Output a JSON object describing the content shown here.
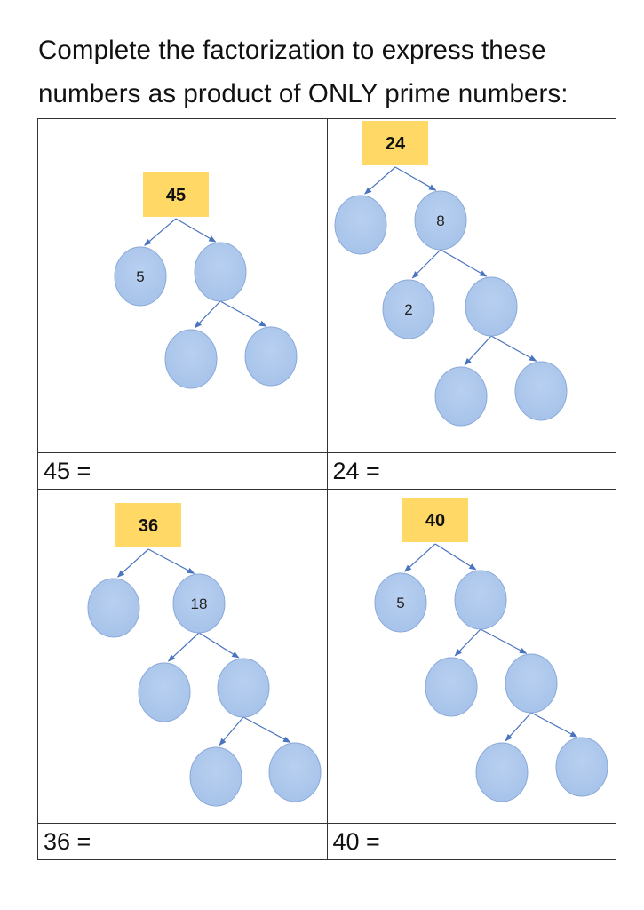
{
  "instruction": {
    "line1": "Complete the factorization to express these",
    "line2": "numbers as product of ONLY prime numbers:"
  },
  "colors": {
    "root_box": "#ffd866",
    "node_fill": "#a6c2e9",
    "node_stroke": "#8aa9d9",
    "arrow": "#4a74c0",
    "grid_border": "#333333"
  },
  "problems": [
    {
      "root": "45",
      "nodes": [
        {
          "id": "a",
          "parent": "root",
          "value": "5"
        },
        {
          "id": "b",
          "parent": "root",
          "value": ""
        },
        {
          "id": "c",
          "parent": "b",
          "value": ""
        },
        {
          "id": "d",
          "parent": "b",
          "value": ""
        }
      ],
      "answer_label": "45 ="
    },
    {
      "root": "24",
      "nodes": [
        {
          "id": "a",
          "parent": "root",
          "value": ""
        },
        {
          "id": "b",
          "parent": "root",
          "value": "8"
        },
        {
          "id": "c",
          "parent": "b",
          "value": "2"
        },
        {
          "id": "d",
          "parent": "b",
          "value": ""
        },
        {
          "id": "e",
          "parent": "d",
          "value": ""
        },
        {
          "id": "f",
          "parent": "d",
          "value": ""
        }
      ],
      "answer_label": "24 ="
    },
    {
      "root": "36",
      "nodes": [
        {
          "id": "a",
          "parent": "root",
          "value": ""
        },
        {
          "id": "b",
          "parent": "root",
          "value": "18"
        },
        {
          "id": "c",
          "parent": "b",
          "value": ""
        },
        {
          "id": "d",
          "parent": "b",
          "value": ""
        },
        {
          "id": "e",
          "parent": "d",
          "value": ""
        },
        {
          "id": "f",
          "parent": "d",
          "value": ""
        }
      ],
      "answer_label": "36 ="
    },
    {
      "root": "40",
      "nodes": [
        {
          "id": "a",
          "parent": "root",
          "value": "5"
        },
        {
          "id": "b",
          "parent": "root",
          "value": ""
        },
        {
          "id": "c",
          "parent": "b",
          "value": ""
        },
        {
          "id": "d",
          "parent": "b",
          "value": ""
        },
        {
          "id": "e",
          "parent": "d",
          "value": ""
        },
        {
          "id": "f",
          "parent": "d",
          "value": ""
        }
      ],
      "answer_label": "40 ="
    }
  ]
}
